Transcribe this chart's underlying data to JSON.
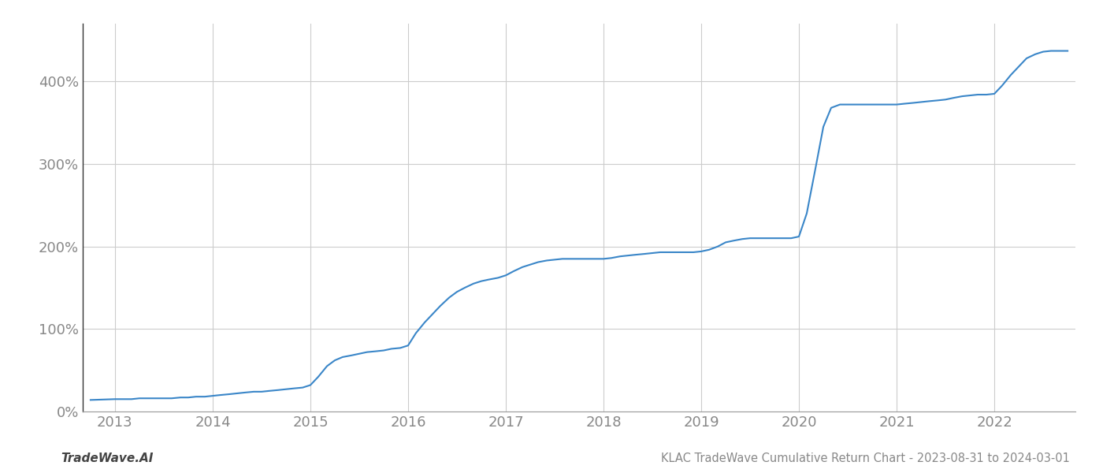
{
  "title": "KLAC TradeWave Cumulative Return Chart - 2023-08-31 to 2024-03-01",
  "footer_left": "TradeWave.AI",
  "line_color": "#3a86c8",
  "background_color": "#ffffff",
  "grid_color": "#cccccc",
  "x_years": [
    2013,
    2014,
    2015,
    2016,
    2017,
    2018,
    2019,
    2020,
    2021,
    2022
  ],
  "data_x": [
    2012.75,
    2013.0,
    2013.08,
    2013.17,
    2013.25,
    2013.33,
    2013.42,
    2013.5,
    2013.58,
    2013.67,
    2013.75,
    2013.83,
    2013.92,
    2014.0,
    2014.08,
    2014.17,
    2014.25,
    2014.33,
    2014.42,
    2014.5,
    2014.58,
    2014.67,
    2014.75,
    2014.83,
    2014.92,
    2015.0,
    2015.08,
    2015.17,
    2015.25,
    2015.33,
    2015.42,
    2015.5,
    2015.58,
    2015.67,
    2015.75,
    2015.83,
    2015.92,
    2016.0,
    2016.08,
    2016.17,
    2016.25,
    2016.33,
    2016.42,
    2016.5,
    2016.58,
    2016.67,
    2016.75,
    2016.83,
    2016.92,
    2017.0,
    2017.08,
    2017.17,
    2017.25,
    2017.33,
    2017.42,
    2017.5,
    2017.58,
    2017.67,
    2017.75,
    2017.83,
    2017.92,
    2018.0,
    2018.08,
    2018.17,
    2018.25,
    2018.33,
    2018.42,
    2018.5,
    2018.58,
    2018.67,
    2018.75,
    2018.83,
    2018.92,
    2019.0,
    2019.08,
    2019.17,
    2019.25,
    2019.33,
    2019.42,
    2019.5,
    2019.58,
    2019.67,
    2019.75,
    2019.83,
    2019.92,
    2020.0,
    2020.08,
    2020.17,
    2020.25,
    2020.33,
    2020.42,
    2020.5,
    2020.58,
    2020.67,
    2020.75,
    2020.83,
    2020.92,
    2021.0,
    2021.08,
    2021.17,
    2021.25,
    2021.33,
    2021.42,
    2021.5,
    2021.58,
    2021.67,
    2021.75,
    2021.83,
    2021.92,
    2022.0,
    2022.08,
    2022.17,
    2022.25,
    2022.33,
    2022.42,
    2022.5,
    2022.58,
    2022.67,
    2022.75
  ],
  "data_y": [
    14,
    15,
    15,
    15,
    16,
    16,
    16,
    16,
    16,
    17,
    17,
    18,
    18,
    19,
    20,
    21,
    22,
    23,
    24,
    24,
    25,
    26,
    27,
    28,
    29,
    32,
    42,
    55,
    62,
    66,
    68,
    70,
    72,
    73,
    74,
    76,
    77,
    80,
    95,
    108,
    118,
    128,
    138,
    145,
    150,
    155,
    158,
    160,
    162,
    165,
    170,
    175,
    178,
    181,
    183,
    184,
    185,
    185,
    185,
    185,
    185,
    185,
    186,
    188,
    189,
    190,
    191,
    192,
    193,
    193,
    193,
    193,
    193,
    194,
    196,
    200,
    205,
    207,
    209,
    210,
    210,
    210,
    210,
    210,
    210,
    212,
    240,
    295,
    345,
    368,
    372,
    372,
    372,
    372,
    372,
    372,
    372,
    372,
    373,
    374,
    375,
    376,
    377,
    378,
    380,
    382,
    383,
    384,
    384,
    385,
    395,
    408,
    418,
    428,
    433,
    436,
    437,
    437,
    437
  ],
  "ylim": [
    0,
    470
  ],
  "yticks": [
    0,
    100,
    200,
    300,
    400
  ],
  "xlim": [
    2012.67,
    2022.83
  ],
  "line_width": 1.5,
  "title_fontsize": 10.5,
  "tick_fontsize": 13,
  "footer_fontsize": 11,
  "tick_color": "#888888",
  "spine_color": "#999999",
  "left_spine_color": "#333333"
}
